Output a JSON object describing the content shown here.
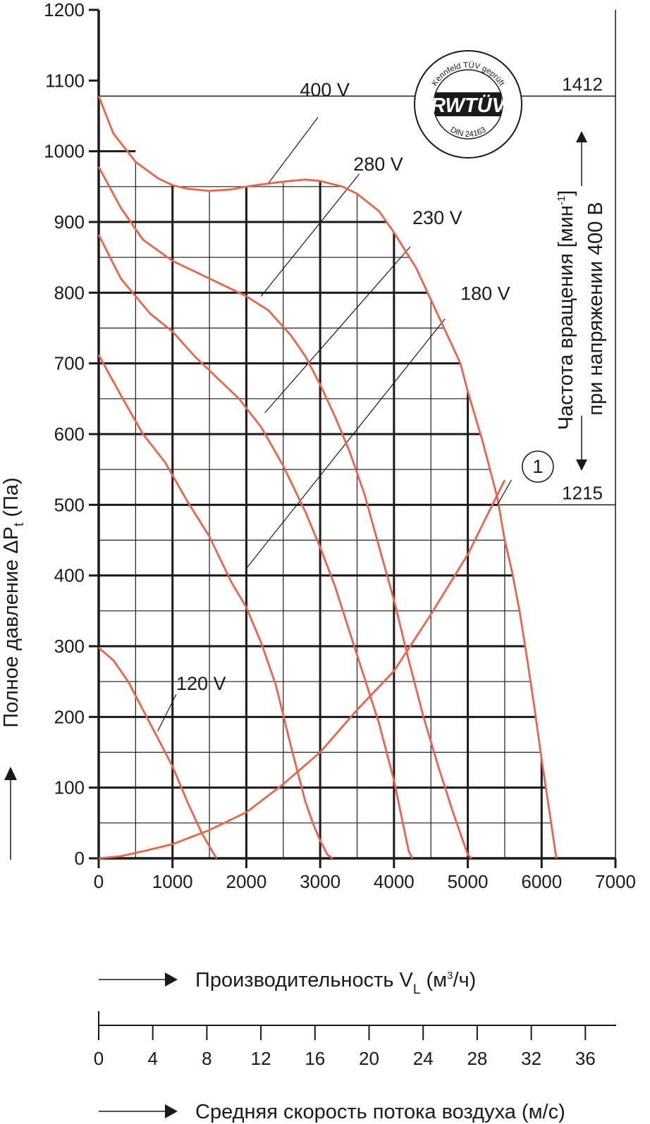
{
  "chart_data": {
    "type": "line",
    "title": "",
    "xlabel": "Производительность V",
    "xlabel_sub": "L",
    "xlabel_unit_a": " (м",
    "xlabel_unit_sup": "3",
    "xlabel_unit_b": "/ч)",
    "ylabel": "Полное давление ΔP",
    "ylabel_sub": "t",
    "ylabel_unit": " (Па)",
    "xlim": [
      0,
      7000
    ],
    "ylim": [
      0,
      1200
    ],
    "x_ticks": [
      "0",
      "1000",
      "2000",
      "3000",
      "4000",
      "5000",
      "6000",
      "7000"
    ],
    "y_ticks": [
      "0",
      "100",
      "200",
      "300",
      "400",
      "500",
      "600",
      "700",
      "800",
      "900",
      "1000",
      "1100",
      "1200"
    ],
    "series": [
      {
        "name": "400 V",
        "color": "#e8644a",
        "x": [
          0,
          200,
          500,
          800,
          1000,
          1200,
          1500,
          1800,
          2000,
          2200,
          2500,
          2800,
          3000,
          3300,
          3500,
          3800,
          4000,
          4300,
          4500,
          4700,
          4900,
          5000,
          5200,
          5400,
          5500,
          5600,
          5700,
          5800,
          5900,
          6000,
          6100,
          6200
        ],
        "y": [
          1078,
          1025,
          985,
          962,
          952,
          947,
          944,
          946,
          950,
          953,
          957,
          960,
          958,
          950,
          940,
          915,
          885,
          835,
          790,
          745,
          700,
          660,
          590,
          510,
          450,
          405,
          350,
          285,
          215,
          140,
          70,
          0
        ]
      },
      {
        "name": "280 V",
        "color": "#e8644a",
        "x": [
          0,
          300,
          600,
          1000,
          1400,
          1800,
          2000,
          2300,
          2600,
          2800,
          3000,
          3200,
          3400,
          3600,
          3800,
          4000,
          4200,
          4400,
          4600,
          4800,
          5000,
          5050
        ],
        "y": [
          978,
          920,
          875,
          845,
          825,
          805,
          795,
          775,
          740,
          710,
          670,
          625,
          575,
          515,
          440,
          365,
          280,
          200,
          130,
          65,
          5,
          0
        ]
      },
      {
        "name": "230 V",
        "color": "#e8644a",
        "x": [
          0,
          300,
          700,
          1000,
          1300,
          1600,
          1900,
          2200,
          2500,
          2800,
          3000,
          3200,
          3400,
          3600,
          3800,
          4000,
          4100,
          4200,
          4250
        ],
        "y": [
          882,
          820,
          770,
          745,
          710,
          680,
          650,
          610,
          555,
          490,
          440,
          385,
          320,
          255,
          190,
          110,
          60,
          10,
          0
        ]
      },
      {
        "name": "180 V",
        "color": "#e8644a",
        "x": [
          0,
          300,
          600,
          900,
          1200,
          1500,
          1800,
          2000,
          2200,
          2400,
          2600,
          2800,
          2900,
          3000,
          3100,
          3170
        ],
        "y": [
          712,
          655,
          600,
          560,
          505,
          455,
          390,
          355,
          305,
          245,
          160,
          80,
          50,
          25,
          5,
          0
        ]
      },
      {
        "name": "120 V",
        "color": "#e8644a",
        "x": [
          0,
          200,
          400,
          600,
          800,
          1000,
          1200,
          1400,
          1550,
          1600
        ],
        "y": [
          298,
          280,
          250,
          210,
          170,
          130,
          80,
          35,
          8,
          0
        ]
      },
      {
        "name": "1",
        "color": "#e8644a",
        "x": [
          0,
          300,
          600,
          1000,
          1500,
          2000,
          2500,
          3000,
          3500,
          4000,
          4500,
          5000,
          5500
        ],
        "y": [
          0,
          3,
          10,
          20,
          40,
          65,
          105,
          150,
          210,
          265,
          345,
          430,
          535
        ]
      }
    ],
    "annotations": [
      {
        "text": "400 V",
        "x": 2300,
        "y": 955
      },
      {
        "text": "280 V",
        "x": 2200,
        "y": 795
      },
      {
        "text": "230 V",
        "x": 2250,
        "y": 630
      },
      {
        "text": "180 V",
        "x": 2000,
        "y": 410
      },
      {
        "text": "120 V",
        "x": 800,
        "y": 180
      },
      {
        "text": "1",
        "x": 5400,
        "y": 500
      }
    ],
    "reference_lines": [
      {
        "y": 1078,
        "label": "1412"
      },
      {
        "y": 500,
        "label": "1215"
      }
    ],
    "secondary_axis": {
      "label_a": "Частота вращения [мин",
      "label_sup": "-1",
      "label_b": "]",
      "label2": "при напряжении 400 В"
    },
    "velocity_axis": {
      "label": "Средняя скорость потока воздуха (м/с)",
      "ticks": [
        "0",
        "4",
        "8",
        "12",
        "16",
        "20",
        "24",
        "28",
        "32",
        "36"
      ]
    },
    "stamp": {
      "top_text": "Kennfeld TÜV geprüft",
      "logo_text": "RWTÜV",
      "bottom_text": "DIN 24163"
    }
  }
}
